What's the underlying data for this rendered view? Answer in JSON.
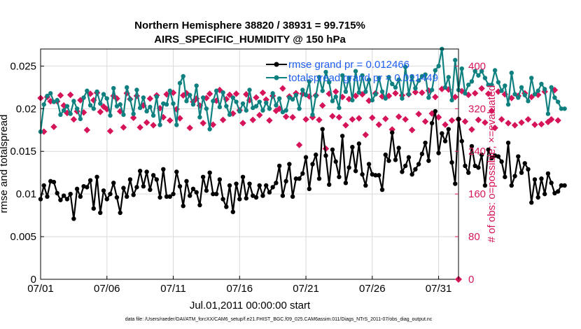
{
  "chart_data": {
    "type": "line",
    "title": "Northern Hemisphere 38820 / 38931 = 99.715%",
    "subtitle": "AIRS_SPECIFIC_HUMIDITY @ 150 hPa",
    "xlabel": "Jul.01,2011 00:00:00 start",
    "ylabel": "rmse and totalspread",
    "ylabel_right": "# of obs: o=possible; ×=evaluated",
    "footnote": "data file: /Users/raeder/DAI/ATM_forcXX/CAM6_setup/f.e21.FHIST_BGC.f09_025.CAM6assim.011/Diags_NTrS_2011-07/obs_diag_output.nc",
    "xlim": [
      0,
      31.5
    ],
    "ylim": [
      0,
      0.027
    ],
    "ylim_right": [
      0,
      432
    ],
    "x_ticks": [
      0,
      5,
      10,
      15,
      20,
      25,
      30
    ],
    "x_tick_labels": [
      "07/01",
      "07/06",
      "07/11",
      "07/16",
      "07/21",
      "07/26",
      "07/31"
    ],
    "y_ticks": [
      0,
      0.005,
      0.01,
      0.015,
      0.02,
      0.025
    ],
    "y_tick_labels": [
      "0",
      "0.005",
      "0.01",
      "0.015",
      "0.02",
      "0.025"
    ],
    "y_right_ticks": [
      0,
      80,
      160,
      240,
      320,
      400
    ],
    "y_right_tick_labels": [
      "0",
      "80",
      "160",
      "240",
      "320",
      "400"
    ],
    "grid": true,
    "legend_position": "top-right",
    "legend": [
      {
        "label": "rmse grand pr = 0.012466",
        "color": "#000000"
      },
      {
        "label": "totalspread grand pr = 0.021449",
        "color": "#0f8080"
      }
    ],
    "colors": {
      "rmse": "#000000",
      "spread": "#0f8080",
      "obs": "#d6145a",
      "legend_text": "#1f5ff0"
    },
    "series": [
      {
        "name": "rmse",
        "x_start": 0,
        "x_step": 0.25,
        "values": [
          0.0094,
          0.011,
          0.0097,
          0.0115,
          0.0114,
          0.0101,
          0.0093,
          0.0098,
          0.0094,
          0.01,
          0.0071,
          0.0106,
          0.0097,
          0.0109,
          0.0108,
          0.0116,
          0.0083,
          0.012,
          0.0078,
          0.0104,
          0.0094,
          0.01,
          0.0113,
          0.0096,
          0.0078,
          0.0107,
          0.0097,
          0.0117,
          0.0099,
          0.0108,
          0.0127,
          0.0109,
          0.0126,
          0.0105,
          0.0122,
          0.0117,
          0.0096,
          0.0129,
          0.0097,
          0.0097,
          0.01,
          0.0126,
          0.0109,
          0.0086,
          0.0115,
          0.0098,
          0.0106,
          0.0102,
          0.0087,
          0.012,
          0.0104,
          0.0125,
          0.01,
          0.01,
          0.0117,
          0.0094,
          0.0085,
          0.011,
          0.0079,
          0.0112,
          0.0094,
          0.012,
          0.0095,
          0.0112,
          0.0098,
          0.0096,
          0.011,
          0.0098,
          0.011,
          0.0102,
          0.0108,
          0.0113,
          0.0133,
          0.0098,
          0.0115,
          0.0135,
          0.0097,
          0.0118,
          0.0118,
          0.0124,
          0.0143,
          0.0106,
          0.0135,
          0.0146,
          0.0118,
          0.0176,
          0.0145,
          0.0111,
          0.0152,
          0.0138,
          0.012,
          0.0168,
          0.0113,
          0.0131,
          0.0155,
          0.0127,
          0.0159,
          0.0123,
          0.011,
          0.0135,
          0.0123,
          0.0122,
          0.0122,
          0.0105,
          0.0146,
          0.0139,
          0.0172,
          0.014,
          0.0154,
          0.0126,
          0.0133,
          0.0143,
          0.0123,
          0.0129,
          0.0135,
          0.0147,
          0.016,
          0.0139,
          0.0183,
          0.0197,
          0.0148,
          0.0171,
          0.0162,
          0.0176,
          0.0137,
          0.0112,
          0.0188,
          0.0162,
          0.0133,
          0.0125,
          0.0156,
          0.0133,
          0.0131,
          0.0146,
          0.011,
          0.0152,
          0.0142,
          0.0145,
          0.0144,
          0.0138,
          0.012,
          0.016,
          0.011,
          0.0121,
          0.0144,
          0.0125,
          0.0136,
          0.0129,
          0.009,
          0.0117,
          0.0096,
          0.0118,
          0.01,
          0.0124,
          0.0113,
          0.0101,
          0.0103,
          0.011,
          0.011
        ]
      },
      {
        "name": "totalspread",
        "x_start": 0,
        "x_step": 0.25,
        "values": [
          0.0173,
          0.0205,
          0.0215,
          0.0218,
          0.0208,
          0.021,
          0.0193,
          0.0198,
          0.0203,
          0.0194,
          0.0209,
          0.02,
          0.0188,
          0.0213,
          0.0221,
          0.0204,
          0.02,
          0.022,
          0.0206,
          0.0217,
          0.0212,
          0.0192,
          0.0224,
          0.0203,
          0.0205,
          0.0193,
          0.0225,
          0.0211,
          0.0194,
          0.0222,
          0.0201,
          0.0213,
          0.0197,
          0.0202,
          0.0192,
          0.0214,
          0.0181,
          0.0206,
          0.0205,
          0.0221,
          0.0206,
          0.0181,
          0.023,
          0.0238,
          0.0209,
          0.0216,
          0.0205,
          0.0227,
          0.019,
          0.0213,
          0.02,
          0.0176,
          0.0209,
          0.0221,
          0.0202,
          0.0219,
          0.0203,
          0.0193,
          0.0213,
          0.0208,
          0.0197,
          0.0206,
          0.0198,
          0.0222,
          0.0201,
          0.0203,
          0.0208,
          0.0198,
          0.0207,
          0.02,
          0.0218,
          0.0204,
          0.0212,
          0.0196,
          0.0198,
          0.0213,
          0.0211,
          0.0216,
          0.02,
          0.0222,
          0.0216,
          0.0232,
          0.0193,
          0.0215,
          0.0237,
          0.0221,
          0.0243,
          0.0231,
          0.0209,
          0.0214,
          0.0201,
          0.0239,
          0.022,
          0.0236,
          0.021,
          0.0244,
          0.0219,
          0.0239,
          0.022,
          0.0234,
          0.021,
          0.0217,
          0.0236,
          0.022,
          0.0212,
          0.0237,
          0.0229,
          0.0225,
          0.0234,
          0.0212,
          0.0249,
          0.0217,
          0.0237,
          0.0224,
          0.0233,
          0.0238,
          0.024,
          0.0213,
          0.0222,
          0.0245,
          0.025,
          0.027,
          0.0225,
          0.0237,
          0.021,
          0.0257,
          0.0222,
          0.0247,
          0.0218,
          0.0228,
          0.0232,
          0.0244,
          0.0239,
          0.0244,
          0.0236,
          0.0228,
          0.0228,
          0.0245,
          0.0231,
          0.0221,
          0.0227,
          0.0205,
          0.0242,
          0.0217,
          0.0213,
          0.0225,
          0.0216,
          0.0209,
          0.0236,
          0.0217,
          0.0221,
          0.0229,
          0.0223,
          0.0194,
          0.0225,
          0.0213,
          0.0208,
          0.02,
          0.02
        ]
      },
      {
        "name": "obs_possible",
        "axis": "right",
        "x_start": 0,
        "x_step": 0.25,
        "values": [
          340,
          277,
          342,
          334,
          286,
          334,
          345,
          326,
          312,
          346,
          300,
          315,
          336,
          313,
          280,
          348,
          336,
          350,
          314,
          324,
          319,
          278,
          344,
          339,
          315,
          285,
          349,
          338,
          303,
          344,
          285,
          326,
          294,
          339,
          289,
          345,
          321,
          304,
          347,
          298,
          350,
          319,
          302,
          345,
          349,
          284,
          333,
          339,
          326,
          293,
          340,
          348,
          290,
          335,
          355,
          299,
          338,
          346,
          311,
          348,
          317,
          293,
          347,
          336,
          299,
          341,
          308,
          350,
          337,
          298,
          344,
          316,
          320,
          358,
          305,
          343,
          304,
          349,
          252,
          348,
          300,
          343,
          304,
          345,
          299,
          326,
          245,
          348,
          306,
          352,
          304,
          342,
          289,
          338,
          300,
          344,
          302,
          347,
          271,
          335,
          303,
          349,
          290,
          343,
          301,
          344,
          281,
          349,
          305,
          345,
          300,
          347,
          280,
          351,
          310,
          350,
          296,
          354,
          311,
          342,
          304,
          357,
          290,
          356,
          298,
          342,
          300,
          353,
          296,
          346,
          281,
          349,
          299,
          358,
          294,
          348,
          316,
          284,
          352,
          300,
          347,
          293,
          340,
          289,
          344,
          294,
          349,
          300,
          342,
          290,
          346,
          291,
          352,
          295,
          300,
          355,
          298
        ]
      }
    ]
  }
}
